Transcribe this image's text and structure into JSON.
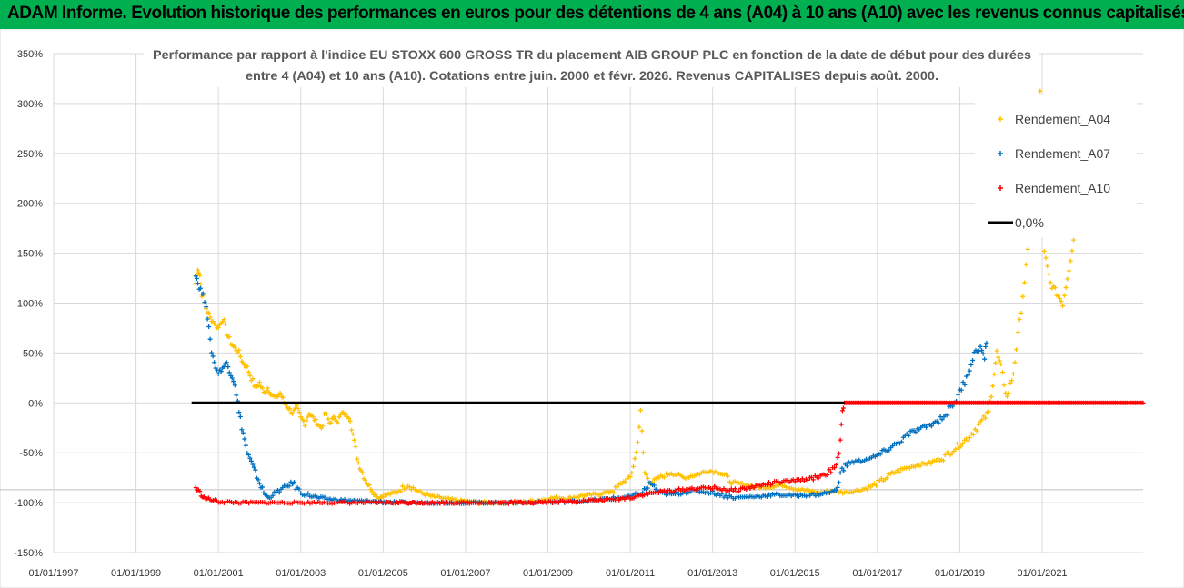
{
  "header": {
    "banner_title": "ADAM Informe. Evolution historique des performances en euros pour des détentions de 4 ans (A04) à 10 ans (A10) avec les revenus connus capitalisés"
  },
  "colors": {
    "banner_bg": "#00B050",
    "a04": "#FFC000",
    "a07": "#0070C0",
    "a10": "#FF0000",
    "zero": "#000000",
    "grid": "#D9D9D9"
  },
  "chart_data": {
    "type": "scatter",
    "title_lines": [
      "Performance par rapport à l'indice EU STOXX 600 GROSS TR  du placement AIB GROUP PLC en fonction de la date de début pour des durées",
      "entre 4 (A04) et 10 ans (A10). Cotations entre juin. 2000 et févr. 2026. Revenus CAPITALISES depuis août. 2000."
    ],
    "x_ticks": [
      "01/01/1997",
      "01/01/1999",
      "01/01/2001",
      "01/01/2003",
      "01/01/2005",
      "01/01/2007",
      "01/01/2009",
      "01/01/2011",
      "01/01/2013",
      "01/01/2015",
      "01/01/2017",
      "01/01/2019",
      "01/01/2021"
    ],
    "x_range": [
      1997.0,
      2023.45
    ],
    "y_ticks": [
      "350%",
      "300%",
      "250%",
      "200%",
      "150%",
      "100%",
      "50%",
      "0%",
      "-50%",
      "-100%",
      "-150%"
    ],
    "y_range": [
      -150,
      350
    ],
    "grid": true,
    "legend_position": "top-right",
    "legend": [
      "Rendement_A04",
      "Rendement_A07",
      "Rendement_A10",
      "0,0%"
    ],
    "series": [
      {
        "name": "Rendement_A04",
        "marker": "plus",
        "points": [
          [
            2000.45,
            120
          ],
          [
            2000.5,
            135
          ],
          [
            2000.55,
            128
          ],
          [
            2000.6,
            110
          ],
          [
            2000.7,
            95
          ],
          [
            2000.8,
            85
          ],
          [
            2000.9,
            80
          ],
          [
            2001.0,
            75
          ],
          [
            2001.1,
            85
          ],
          [
            2001.2,
            70
          ],
          [
            2001.3,
            60
          ],
          [
            2001.4,
            55
          ],
          [
            2001.5,
            50
          ],
          [
            2001.6,
            40
          ],
          [
            2001.7,
            35
          ],
          [
            2001.8,
            25
          ],
          [
            2001.9,
            15
          ],
          [
            2002.0,
            20
          ],
          [
            2002.1,
            10
          ],
          [
            2002.2,
            15
          ],
          [
            2002.3,
            8
          ],
          [
            2002.4,
            5
          ],
          [
            2002.5,
            10
          ],
          [
            2002.6,
            0
          ],
          [
            2002.7,
            -5
          ],
          [
            2002.8,
            -10
          ],
          [
            2002.9,
            -5
          ],
          [
            2003.0,
            -15
          ],
          [
            2003.1,
            -20
          ],
          [
            2003.2,
            -10
          ],
          [
            2003.3,
            -15
          ],
          [
            2003.4,
            -20
          ],
          [
            2003.5,
            -25
          ],
          [
            2003.6,
            -10
          ],
          [
            2003.7,
            -20
          ],
          [
            2003.8,
            -15
          ],
          [
            2003.9,
            -18
          ],
          [
            2004.0,
            -10
          ],
          [
            2004.1,
            -12
          ],
          [
            2004.2,
            -15
          ],
          [
            2004.3,
            -40
          ],
          [
            2004.4,
            -60
          ],
          [
            2004.5,
            -70
          ],
          [
            2004.6,
            -80
          ],
          [
            2004.7,
            -85
          ],
          [
            2004.8,
            -92
          ],
          [
            2004.9,
            -95
          ],
          [
            2005.0,
            -93
          ],
          [
            2005.3,
            -90
          ],
          [
            2005.6,
            -82
          ],
          [
            2005.9,
            -90
          ],
          [
            2006.2,
            -94
          ],
          [
            2006.5,
            -96
          ],
          [
            2006.8,
            -98
          ],
          [
            2007.1,
            -99
          ],
          [
            2007.5,
            -100
          ],
          [
            2008.0,
            -100
          ],
          [
            2008.5,
            -99
          ],
          [
            2008.9,
            -97
          ],
          [
            2009.2,
            -95
          ],
          [
            2009.5,
            -96
          ],
          [
            2009.8,
            -93
          ],
          [
            2010.1,
            -92
          ],
          [
            2010.4,
            -90
          ],
          [
            2010.6,
            -88
          ],
          [
            2010.8,
            -80
          ],
          [
            2011.0,
            -75
          ],
          [
            2011.15,
            -50
          ],
          [
            2011.25,
            -10
          ],
          [
            2011.35,
            -70
          ],
          [
            2011.5,
            -80
          ],
          [
            2011.7,
            -75
          ],
          [
            2012.0,
            -70
          ],
          [
            2012.3,
            -75
          ],
          [
            2012.6,
            -72
          ],
          [
            2012.9,
            -68
          ],
          [
            2013.2,
            -70
          ],
          [
            2013.5,
            -80
          ],
          [
            2013.8,
            -82
          ],
          [
            2014.1,
            -85
          ],
          [
            2014.4,
            -84
          ],
          [
            2014.7,
            -82
          ],
          [
            2015.0,
            -86
          ],
          [
            2015.3,
            -88
          ],
          [
            2015.6,
            -90
          ],
          [
            2015.9,
            -88
          ],
          [
            2016.2,
            -90
          ],
          [
            2016.5,
            -88
          ],
          [
            2016.8,
            -85
          ],
          [
            2017.1,
            -78
          ],
          [
            2017.4,
            -70
          ],
          [
            2017.7,
            -65
          ],
          [
            2018.0,
            -62
          ],
          [
            2018.3,
            -60
          ],
          [
            2018.6,
            -55
          ],
          [
            2018.9,
            -45
          ],
          [
            2019.2,
            -35
          ],
          [
            2019.5,
            -20
          ],
          [
            2019.7,
            -10
          ],
          [
            2019.8,
            20
          ],
          [
            2019.9,
            50
          ],
          [
            2020.0,
            35
          ],
          [
            2020.15,
            5
          ],
          [
            2020.3,
            30
          ],
          [
            2020.45,
            80
          ],
          [
            2020.65,
            150
          ],
          [
            2020.95,
            312
          ],
          [
            2021.05,
            150
          ],
          [
            2021.2,
            120
          ],
          [
            2021.35,
            110
          ],
          [
            2021.5,
            100
          ],
          [
            2021.65,
            135
          ],
          [
            2021.8,
            175
          ]
        ]
      },
      {
        "name": "Rendement_A07",
        "marker": "plus",
        "points": [
          [
            2000.45,
            130
          ],
          [
            2000.5,
            120
          ],
          [
            2000.6,
            110
          ],
          [
            2000.7,
            100
          ],
          [
            2000.8,
            60
          ],
          [
            2000.9,
            40
          ],
          [
            2001.0,
            30
          ],
          [
            2001.1,
            35
          ],
          [
            2001.2,
            40
          ],
          [
            2001.3,
            30
          ],
          [
            2001.4,
            20
          ],
          [
            2001.5,
            -10
          ],
          [
            2001.6,
            -30
          ],
          [
            2001.7,
            -50
          ],
          [
            2001.8,
            -60
          ],
          [
            2001.9,
            -70
          ],
          [
            2002.0,
            -80
          ],
          [
            2002.1,
            -90
          ],
          [
            2002.2,
            -95
          ],
          [
            2002.4,
            -90
          ],
          [
            2002.6,
            -85
          ],
          [
            2002.8,
            -80
          ],
          [
            2003.0,
            -90
          ],
          [
            2003.4,
            -95
          ],
          [
            2003.8,
            -97
          ],
          [
            2004.2,
            -98
          ],
          [
            2004.8,
            -99
          ],
          [
            2005.5,
            -100
          ],
          [
            2007.0,
            -100
          ],
          [
            2008.5,
            -100
          ],
          [
            2009.5,
            -99
          ],
          [
            2010.0,
            -98
          ],
          [
            2010.5,
            -96
          ],
          [
            2011.0,
            -94
          ],
          [
            2011.3,
            -90
          ],
          [
            2011.5,
            -80
          ],
          [
            2011.7,
            -90
          ],
          [
            2012.0,
            -92
          ],
          [
            2012.5,
            -88
          ],
          [
            2013.0,
            -90
          ],
          [
            2013.5,
            -95
          ],
          [
            2014.0,
            -94
          ],
          [
            2014.5,
            -92
          ],
          [
            2015.0,
            -93
          ],
          [
            2015.5,
            -92
          ],
          [
            2015.8,
            -90
          ],
          [
            2016.0,
            -88
          ],
          [
            2016.1,
            -70
          ],
          [
            2016.3,
            -60
          ],
          [
            2016.6,
            -58
          ],
          [
            2016.9,
            -55
          ],
          [
            2017.2,
            -48
          ],
          [
            2017.5,
            -40
          ],
          [
            2017.8,
            -30
          ],
          [
            2018.1,
            -25
          ],
          [
            2018.4,
            -20
          ],
          [
            2018.7,
            -10
          ],
          [
            2019.0,
            10
          ],
          [
            2019.2,
            30
          ],
          [
            2019.35,
            50
          ],
          [
            2019.5,
            55
          ],
          [
            2019.6,
            45
          ],
          [
            2019.65,
            60
          ]
        ]
      },
      {
        "name": "Rendement_A10",
        "marker": "plus",
        "points": [
          [
            2000.45,
            -85
          ],
          [
            2000.55,
            -90
          ],
          [
            2000.65,
            -95
          ],
          [
            2000.8,
            -97
          ],
          [
            2001.0,
            -99
          ],
          [
            2001.5,
            -100
          ],
          [
            2002.5,
            -100
          ],
          [
            2004.0,
            -100
          ],
          [
            2006.0,
            -100
          ],
          [
            2008.0,
            -100
          ],
          [
            2009.5,
            -99
          ],
          [
            2010.0,
            -98
          ],
          [
            2010.5,
            -97
          ],
          [
            2011.0,
            -95
          ],
          [
            2011.3,
            -92
          ],
          [
            2011.6,
            -90
          ],
          [
            2012.0,
            -88
          ],
          [
            2012.5,
            -86
          ],
          [
            2013.0,
            -85
          ],
          [
            2013.5,
            -88
          ],
          [
            2014.0,
            -84
          ],
          [
            2014.5,
            -80
          ],
          [
            2015.0,
            -78
          ],
          [
            2015.4,
            -76
          ],
          [
            2015.7,
            -72
          ],
          [
            2016.0,
            -65
          ],
          [
            2016.1,
            -40
          ],
          [
            2016.15,
            -10
          ],
          [
            2016.2,
            0
          ],
          [
            2016.5,
            0
          ],
          [
            2018.0,
            0
          ],
          [
            2020.0,
            0
          ],
          [
            2022.0,
            0
          ],
          [
            2023.45,
            0
          ]
        ]
      }
    ],
    "zero_line": {
      "name": "0,0%",
      "x_from": 2000.35,
      "x_to": 2023.45,
      "y": 0
    }
  }
}
